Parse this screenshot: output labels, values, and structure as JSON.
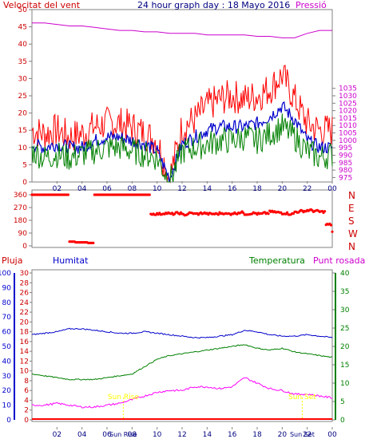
{
  "header": {
    "left_title": "Velocitat del vent",
    "center_title": "24 hour graph day : 18 Mayo 2016",
    "right_title": "Pressió"
  },
  "colors": {
    "wind_gust": "#ff0000",
    "wind_avg": "#0000cc",
    "wind_low": "#008000",
    "pressure": "#cc00cc",
    "axis_left_text": "#cc0000",
    "pressure_axis": "#cc00cc",
    "direction_dots": "#ff0000",
    "humidity": "#0000cc",
    "temperature": "#008000",
    "dewpoint": "#ff00ff",
    "rain_axis": "#cc0000",
    "rain": "#ff0000",
    "sun_label": "#ffff00",
    "hours_text": "#000080"
  },
  "x_hours": [
    "02",
    "04",
    "06",
    "08",
    "10",
    "12",
    "14",
    "16",
    "18",
    "20",
    "22",
    "00"
  ],
  "chart_data": [
    {
      "type": "line",
      "title": "Velocitat del vent / Pressió",
      "left_axis": {
        "label": "Velocitat del vent",
        "ylim": [
          0,
          50
        ],
        "ticks": [
          0,
          5,
          10,
          15,
          20,
          25,
          30,
          35,
          40,
          45,
          50
        ]
      },
      "right_axis": {
        "label": "Pressió",
        "ylim": [
          972,
          1088
        ],
        "ticks": [
          975,
          980,
          985,
          990,
          995,
          1000,
          1005,
          1010,
          1015,
          1020,
          1025,
          1030,
          1035
        ]
      },
      "x": [
        0,
        1,
        2,
        3,
        4,
        5,
        6,
        7,
        8,
        9,
        10,
        11,
        12,
        13,
        14,
        15,
        16,
        17,
        18,
        19,
        20,
        21,
        22,
        23,
        24
      ],
      "series": [
        {
          "name": "Gust",
          "axis": "left",
          "values": [
            15,
            14,
            15,
            13,
            14,
            16,
            17,
            17,
            16,
            14,
            12,
            1,
            16,
            18,
            22,
            24,
            25,
            24,
            25,
            27,
            31,
            24,
            17,
            15,
            15
          ]
        },
        {
          "name": "Average",
          "axis": "left",
          "values": [
            11,
            10,
            11,
            10,
            10,
            12,
            13,
            13,
            12,
            11,
            9,
            1,
            11,
            13,
            15,
            16,
            16,
            16,
            17,
            19,
            22,
            18,
            12,
            10,
            10
          ]
        },
        {
          "name": "Low",
          "axis": "left",
          "values": [
            9,
            7,
            8,
            7,
            8,
            9,
            10,
            10,
            9,
            8,
            7,
            0,
            9,
            10,
            11,
            12,
            12,
            13,
            12,
            14,
            16,
            13,
            9,
            7,
            8
          ]
        },
        {
          "name": "Pressure",
          "axis": "right",
          "values": [
            1079,
            1079,
            1078,
            1077,
            1077,
            1076,
            1075,
            1074,
            1074,
            1073,
            1073,
            1072,
            1072,
            1072,
            1071,
            1071,
            1071,
            1071,
            1070,
            1070,
            1069,
            1069,
            1072,
            1074,
            1074
          ]
        }
      ]
    },
    {
      "type": "scatter",
      "title": "Wind direction",
      "ylim": [
        0,
        360
      ],
      "ticks": [
        0,
        90,
        180,
        270,
        360
      ],
      "compass": [
        "N",
        "W",
        "S",
        "E",
        "N"
      ],
      "x": [
        0,
        0.5,
        1,
        1.5,
        2,
        2.5,
        3,
        3.5,
        4,
        4.5,
        5,
        5.5,
        6,
        6.5,
        7,
        7.5,
        8,
        8.5,
        9,
        9.5,
        10,
        10.5,
        11,
        11.5,
        12,
        12.5,
        13,
        13.5,
        14,
        14.5,
        15,
        15.5,
        16,
        16.5,
        17,
        17.5,
        18,
        18.5,
        19,
        19.5,
        20,
        20.5,
        21,
        21.5,
        22,
        22.5,
        23,
        23.5,
        24
      ],
      "values": [
        360,
        360,
        360,
        360,
        360,
        360,
        30,
        25,
        25,
        20,
        360,
        360,
        360,
        360,
        360,
        360,
        360,
        360,
        360,
        225,
        225,
        230,
        225,
        230,
        220,
        230,
        225,
        230,
        225,
        225,
        230,
        225,
        230,
        235,
        225,
        230,
        225,
        230,
        240,
        235,
        230,
        225,
        240,
        245,
        250,
        245,
        240,
        150,
        100
      ]
    },
    {
      "type": "line",
      "title": "Pluja / Humitat / Temperatura / Punt rosada",
      "rain_axis": {
        "label": "Pluja",
        "ylim": [
          0,
          30
        ],
        "ticks": [
          0,
          2,
          4,
          6,
          8,
          10,
          12,
          14,
          16,
          18,
          20,
          22,
          24,
          26,
          28,
          30
        ]
      },
      "humidity_axis": {
        "label": "Humitat",
        "ylim": [
          0,
          100
        ],
        "ticks": [
          0,
          10,
          20,
          30,
          40,
          50,
          60,
          70,
          80,
          90,
          100
        ]
      },
      "temperature_axis": {
        "label": "Temperatura",
        "ylim": [
          0,
          40
        ],
        "ticks": [
          0,
          5,
          10,
          15,
          20,
          25,
          30,
          35,
          40
        ]
      },
      "dewpoint_label": "Punt rosada",
      "sunrise_label": "Sun Rise",
      "sunset_label": "Sun Set",
      "sunrise_hour": 7.3,
      "sunset_hour": 21.6,
      "x": [
        0,
        1,
        2,
        3,
        4,
        5,
        6,
        7,
        8,
        9,
        10,
        11,
        12,
        13,
        14,
        15,
        16,
        17,
        18,
        19,
        20,
        21,
        22,
        23,
        24
      ],
      "series": [
        {
          "name": "Humitat",
          "values": [
            58,
            59,
            60,
            62,
            62,
            61,
            60,
            59,
            59,
            60,
            59,
            58,
            57,
            56,
            56,
            57,
            58,
            61,
            60,
            58,
            57,
            57,
            58,
            57,
            56
          ]
        },
        {
          "name": "Temperatura",
          "values": [
            12.5,
            12,
            11.5,
            11,
            11,
            11,
            11.5,
            12,
            12.5,
            14.5,
            16.5,
            17.5,
            18,
            18.5,
            19,
            19.5,
            20,
            20.5,
            19.5,
            19,
            19.5,
            18.5,
            18,
            17.5,
            17
          ]
        },
        {
          "name": "Punt rosada",
          "values": [
            4,
            4,
            4.5,
            4,
            3.5,
            3.5,
            4,
            4.5,
            5.5,
            6.5,
            7.5,
            8,
            8,
            9,
            9,
            8.5,
            9,
            11.5,
            10,
            8.5,
            8,
            7,
            7,
            6.5,
            6
          ]
        },
        {
          "name": "Pluja",
          "values": [
            0,
            0,
            0,
            0,
            0,
            0,
            0,
            0,
            0,
            0,
            0,
            0,
            0,
            0,
            0,
            0,
            0,
            0,
            0,
            0,
            0,
            0,
            0,
            0,
            0
          ]
        }
      ]
    }
  ]
}
